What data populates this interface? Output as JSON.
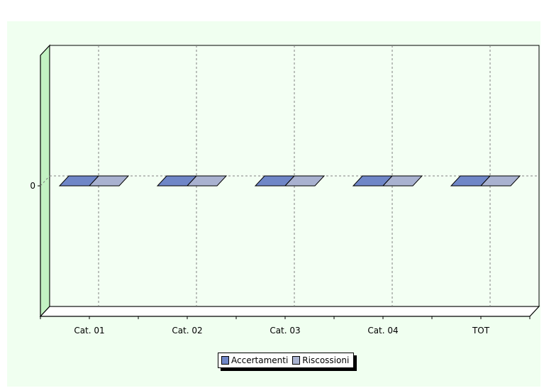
{
  "chart_data": {
    "type": "bar",
    "style": "3d-grouped-bar",
    "title": "",
    "xlabel": "",
    "ylabel": "",
    "categories": [
      "Cat. 01",
      "Cat. 02",
      "Cat. 03",
      "Cat. 04",
      "TOT"
    ],
    "series": [
      {
        "name": "Accertamenti",
        "values": [
          0,
          0,
          0,
          0,
          0
        ],
        "color": "#6f86c7"
      },
      {
        "name": "Riscossioni",
        "values": [
          0,
          0,
          0,
          0,
          0
        ],
        "color": "#a9b2d0"
      }
    ],
    "y_ticks": [
      "0"
    ],
    "ylim": [
      -1,
      1
    ],
    "grid": true,
    "legend_position": "bottom-center"
  },
  "colors": {
    "page_background": "#f0fff0",
    "plot_background": "#f3fff3",
    "wall": "#c3f2c3",
    "grid": "#808080",
    "frame": "#000000"
  }
}
